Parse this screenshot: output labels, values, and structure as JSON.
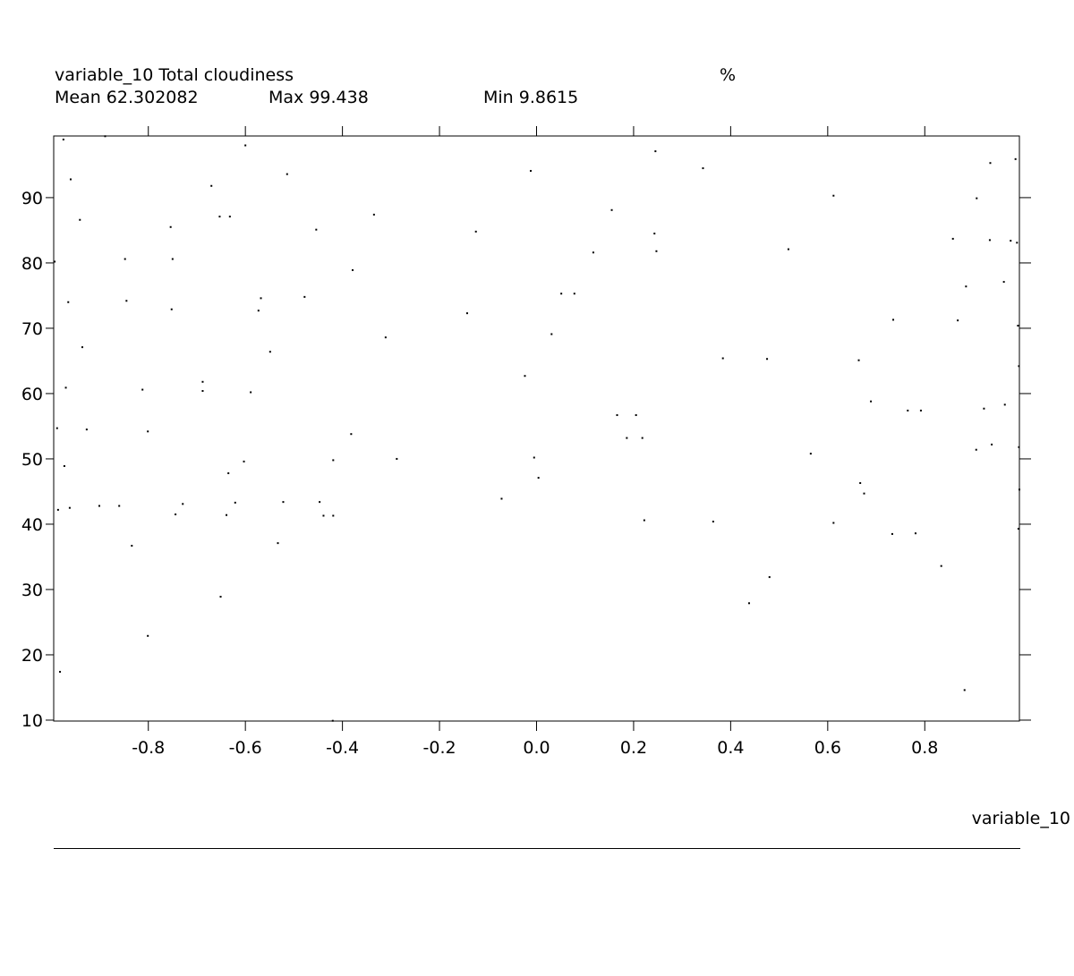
{
  "header": {
    "title": "variable_10 Total cloudiness",
    "units": "%",
    "mean": "Mean 62.302082",
    "max": "Max 99.438",
    "min": "Min 9.8615"
  },
  "chart_data": {
    "type": "scatter",
    "xlabel": "variable_10",
    "ylabel": "",
    "xlim": [
      -0.995,
      0.995
    ],
    "ylim": [
      9.86,
      99.44
    ],
    "x_ticks": [
      -0.8,
      -0.6,
      -0.4,
      -0.2,
      0.0,
      0.2,
      0.4,
      0.6,
      0.8
    ],
    "x_tick_labels": [
      "-0.8",
      "-0.6",
      "-0.4",
      "-0.2",
      "0.0",
      "0.2",
      "0.4",
      "0.6",
      "0.8"
    ],
    "y_ticks": [
      10,
      20,
      30,
      40,
      50,
      60,
      70,
      80,
      90
    ],
    "y_tick_labels": [
      "10",
      "20",
      "30",
      "40",
      "50",
      "60",
      "70",
      "80",
      "90"
    ],
    "grid": false,
    "marker_color": "#000000",
    "points": [
      [
        -0.975,
        98.9
      ],
      [
        -0.889,
        99.4
      ],
      [
        -0.96,
        92.8
      ],
      [
        -0.941,
        86.6
      ],
      [
        -0.993,
        80.2
      ],
      [
        -0.965,
        74.0
      ],
      [
        -0.936,
        67.1
      ],
      [
        -0.97,
        60.9
      ],
      [
        -0.988,
        54.7
      ],
      [
        -0.927,
        54.5
      ],
      [
        -0.973,
        48.9
      ],
      [
        -0.986,
        42.2
      ],
      [
        -0.962,
        42.5
      ],
      [
        -0.901,
        42.8
      ],
      [
        -0.86,
        42.8
      ],
      [
        -0.834,
        36.7
      ],
      [
        -0.982,
        17.4
      ],
      [
        -0.848,
        80.6
      ],
      [
        -0.845,
        74.2
      ],
      [
        -0.812,
        60.6
      ],
      [
        -0.801,
        54.2
      ],
      [
        -0.801,
        22.9
      ],
      [
        -0.754,
        85.5
      ],
      [
        -0.75,
        80.6
      ],
      [
        -0.752,
        72.9
      ],
      [
        -0.744,
        41.5
      ],
      [
        -0.729,
        43.1
      ],
      [
        -0.688,
        61.8
      ],
      [
        -0.688,
        60.4
      ],
      [
        -0.67,
        91.8
      ],
      [
        -0.653,
        87.1
      ],
      [
        -0.632,
        87.1
      ],
      [
        -0.651,
        28.9
      ],
      [
        -0.6,
        98.0
      ],
      [
        -0.568,
        74.6
      ],
      [
        -0.573,
        72.7
      ],
      [
        -0.589,
        60.2
      ],
      [
        -0.603,
        49.6
      ],
      [
        -0.635,
        47.8
      ],
      [
        -0.621,
        43.3
      ],
      [
        -0.639,
        41.4
      ],
      [
        -0.514,
        93.6
      ],
      [
        -0.549,
        66.4
      ],
      [
        -0.478,
        74.8
      ],
      [
        -0.522,
        43.4
      ],
      [
        -0.533,
        37.1
      ],
      [
        -0.454,
        85.1
      ],
      [
        -0.447,
        43.4
      ],
      [
        -0.439,
        41.3
      ],
      [
        -0.419,
        49.8
      ],
      [
        -0.419,
        41.3
      ],
      [
        -0.42,
        9.9
      ],
      [
        -0.379,
        78.9
      ],
      [
        -0.382,
        53.8
      ],
      [
        -0.335,
        87.4
      ],
      [
        -0.311,
        68.6
      ],
      [
        -0.288,
        50.0
      ],
      [
        -0.125,
        84.8
      ],
      [
        -0.143,
        72.3
      ],
      [
        -0.072,
        43.9
      ],
      [
        -0.012,
        94.1
      ],
      [
        -0.024,
        62.7
      ],
      [
        -0.005,
        50.2
      ],
      [
        0.004,
        47.1
      ],
      [
        0.031,
        69.1
      ],
      [
        0.051,
        75.3
      ],
      [
        0.078,
        75.3
      ],
      [
        0.117,
        81.6
      ],
      [
        0.155,
        88.1
      ],
      [
        0.166,
        56.7
      ],
      [
        0.186,
        53.2
      ],
      [
        0.205,
        56.7
      ],
      [
        0.218,
        53.2
      ],
      [
        0.222,
        40.6
      ],
      [
        0.245,
        97.1
      ],
      [
        0.243,
        84.5
      ],
      [
        0.247,
        81.8
      ],
      [
        0.343,
        94.5
      ],
      [
        0.364,
        40.4
      ],
      [
        0.384,
        65.4
      ],
      [
        0.438,
        27.9
      ],
      [
        0.475,
        65.3
      ],
      [
        0.48,
        31.9
      ],
      [
        0.519,
        82.1
      ],
      [
        0.565,
        50.8
      ],
      [
        0.612,
        90.3
      ],
      [
        0.612,
        40.2
      ],
      [
        0.664,
        65.1
      ],
      [
        0.667,
        46.3
      ],
      [
        0.675,
        44.7
      ],
      [
        0.689,
        58.8
      ],
      [
        0.735,
        71.3
      ],
      [
        0.733,
        38.5
      ],
      [
        0.765,
        57.4
      ],
      [
        0.792,
        57.4
      ],
      [
        0.781,
        38.6
      ],
      [
        0.834,
        33.6
      ],
      [
        0.858,
        83.7
      ],
      [
        0.868,
        71.2
      ],
      [
        0.882,
        14.6
      ],
      [
        0.885,
        76.4
      ],
      [
        0.907,
        89.9
      ],
      [
        0.906,
        51.4
      ],
      [
        0.922,
        57.7
      ],
      [
        0.935,
        95.3
      ],
      [
        0.934,
        83.5
      ],
      [
        0.938,
        52.2
      ],
      [
        0.963,
        77.1
      ],
      [
        0.965,
        58.3
      ],
      [
        0.977,
        83.4
      ],
      [
        0.987,
        95.9
      ],
      [
        0.99,
        83.1
      ],
      [
        0.992,
        70.4
      ],
      [
        0.994,
        64.2
      ],
      [
        0.994,
        51.8
      ],
      [
        0.995,
        45.3
      ],
      [
        0.993,
        39.3
      ]
    ]
  }
}
